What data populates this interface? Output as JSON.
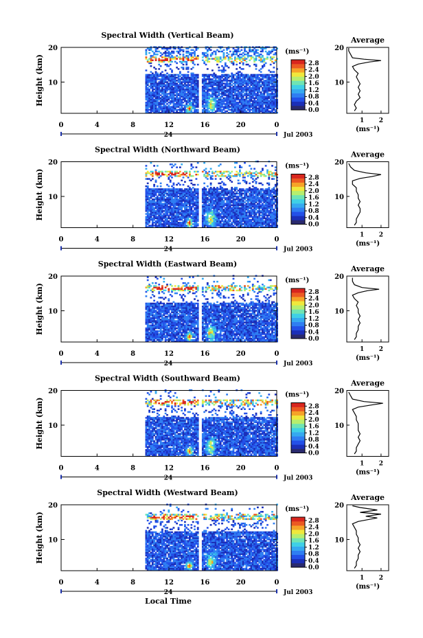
{
  "figure": {
    "bottom_xlabel": "Local Time",
    "colors": {
      "colorbar": [
        "#2a2a6e",
        "#1b2fb8",
        "#2350e8",
        "#2f7ef2",
        "#35a9f0",
        "#3fd0e6",
        "#6fe4b4",
        "#b7ee6e",
        "#f0e83c",
        "#f6a328",
        "#ec5a22",
        "#d8261e"
      ]
    }
  },
  "chart_data": [
    {
      "type": "heatmap",
      "title": "Spectral Width (Vertical Beam)",
      "ylabel": "Height (km)",
      "yticks": [
        "20",
        "10"
      ],
      "ylim": [
        1,
        20
      ],
      "xticks": [
        "0",
        "4",
        "8",
        "12",
        "16",
        "20",
        "0"
      ],
      "xlim": [
        0,
        24
      ],
      "day_label": "24",
      "date_label": "Jul 2003",
      "colorbar": {
        "unit": "(ms⁻¹)",
        "ticks": [
          "0.0",
          "0.4",
          "0.8",
          "1.2",
          "1.6",
          "2.0",
          "2.4",
          "2.8"
        ],
        "range": [
          0,
          3.0
        ]
      },
      "data_gaps_local_time": [
        [
          0,
          9.2
        ],
        [
          15.2,
          15.5
        ]
      ],
      "average": {
        "title": "Average",
        "xlabel": "(ms⁻¹)",
        "xticks": [
          "1",
          "2"
        ],
        "yticks": [
          "20",
          "10"
        ],
        "profile": [
          [
            1.7,
            0.6
          ],
          [
            2.5,
            0.7
          ],
          [
            3.5,
            0.6
          ],
          [
            4.5,
            0.7
          ],
          [
            5.5,
            0.9
          ],
          [
            6.5,
            0.8
          ],
          [
            7.5,
            0.9
          ],
          [
            8.5,
            0.8
          ],
          [
            9.5,
            0.9
          ],
          [
            10.5,
            0.8
          ],
          [
            11.5,
            0.7
          ],
          [
            12.5,
            0.8
          ],
          [
            13.5,
            0.6
          ],
          [
            14.5,
            0.5
          ],
          [
            15.2,
            0.8
          ],
          [
            15.8,
            1.4
          ],
          [
            16.2,
            2.0
          ],
          [
            16.6,
            1.1
          ],
          [
            17.0,
            0.5
          ],
          [
            18.0,
            0.4
          ],
          [
            19.0,
            0.3
          ],
          [
            19.8,
            0.3
          ]
        ]
      }
    },
    {
      "type": "heatmap",
      "title": "Spectral Width (Northward Beam)",
      "ylabel": "Height (km)",
      "yticks": [
        "20",
        "10"
      ],
      "ylim": [
        1,
        20
      ],
      "xticks": [
        "0",
        "4",
        "8",
        "12",
        "16",
        "20",
        "0"
      ],
      "xlim": [
        0,
        24
      ],
      "day_label": "24",
      "date_label": "Jul 2003",
      "colorbar": {
        "unit": "(ms⁻¹)",
        "ticks": [
          "0.0",
          "0.4",
          "0.8",
          "1.2",
          "1.6",
          "2.0",
          "2.4",
          "2.8"
        ],
        "range": [
          0,
          3.0
        ]
      },
      "data_gaps_local_time": [
        [
          0,
          9.2
        ],
        [
          15.2,
          15.5
        ]
      ],
      "average": {
        "title": "Average",
        "xlabel": "(ms⁻¹)",
        "xticks": [
          "1",
          "2"
        ],
        "yticks": [
          "20",
          "10"
        ],
        "profile": [
          [
            1.7,
            0.6
          ],
          [
            2.5,
            0.7
          ],
          [
            3.5,
            0.7
          ],
          [
            4.5,
            0.8
          ],
          [
            5.5,
            0.9
          ],
          [
            6.5,
            0.9
          ],
          [
            7.5,
            0.8
          ],
          [
            8.5,
            0.9
          ],
          [
            9.5,
            0.8
          ],
          [
            10.5,
            0.8
          ],
          [
            11.5,
            0.7
          ],
          [
            12.5,
            0.7
          ],
          [
            13.5,
            0.5
          ],
          [
            14.5,
            0.5
          ],
          [
            15.2,
            0.9
          ],
          [
            15.7,
            1.5
          ],
          [
            16.3,
            2.0
          ],
          [
            16.8,
            1.2
          ],
          [
            17.5,
            0.6
          ],
          [
            18.5,
            0.4
          ],
          [
            19.5,
            0.3
          ]
        ]
      }
    },
    {
      "type": "heatmap",
      "title": "Spectral Width (Eastward Beam)",
      "ylabel": "Height (km)",
      "yticks": [
        "20",
        "10"
      ],
      "ylim": [
        1,
        20
      ],
      "xticks": [
        "0",
        "4",
        "8",
        "12",
        "16",
        "20",
        "0"
      ],
      "xlim": [
        0,
        24
      ],
      "day_label": "24",
      "date_label": "Jul 2003",
      "colorbar": {
        "unit": "(ms⁻¹)",
        "ticks": [
          "0.0",
          "0.4",
          "0.8",
          "1.2",
          "1.6",
          "2.0",
          "2.4",
          "2.8"
        ],
        "range": [
          0,
          3.0
        ]
      },
      "data_gaps_local_time": [
        [
          0,
          9.2
        ],
        [
          15.2,
          15.5
        ]
      ],
      "average": {
        "title": "Average",
        "xlabel": "(ms⁻¹)",
        "xticks": [
          "1",
          "2"
        ],
        "yticks": [
          "20",
          "10"
        ],
        "profile": [
          [
            1.7,
            0.6
          ],
          [
            2.5,
            0.7
          ],
          [
            3.5,
            0.7
          ],
          [
            4.5,
            0.8
          ],
          [
            5.5,
            0.8
          ],
          [
            6.5,
            0.9
          ],
          [
            7.5,
            0.8
          ],
          [
            8.5,
            0.9
          ],
          [
            9.5,
            0.8
          ],
          [
            10.5,
            0.8
          ],
          [
            11.5,
            0.7
          ],
          [
            12.5,
            0.8
          ],
          [
            13.5,
            0.6
          ],
          [
            14.5,
            0.5
          ],
          [
            15.2,
            0.8
          ],
          [
            15.8,
            1.3
          ],
          [
            16.2,
            1.9
          ],
          [
            16.7,
            1.0
          ],
          [
            17.5,
            0.6
          ],
          [
            18.5,
            0.5
          ],
          [
            19.5,
            0.5
          ]
        ]
      }
    },
    {
      "type": "heatmap",
      "title": "Spectral Width (Southward Beam)",
      "ylabel": "Height (km)",
      "yticks": [
        "20",
        "10"
      ],
      "ylim": [
        1,
        20
      ],
      "xticks": [
        "0",
        "4",
        "8",
        "12",
        "16",
        "20",
        "0"
      ],
      "xlim": [
        0,
        24
      ],
      "day_label": "24",
      "date_label": "Jul 2003",
      "colorbar": {
        "unit": "(ms⁻¹)",
        "ticks": [
          "0.0",
          "0.4",
          "0.8",
          "1.2",
          "1.6",
          "2.0",
          "2.4",
          "2.8"
        ],
        "range": [
          0,
          3.0
        ]
      },
      "data_gaps_local_time": [
        [
          0,
          9.2
        ],
        [
          15.2,
          15.5
        ]
      ],
      "average": {
        "title": "Average",
        "xlabel": "(ms⁻¹)",
        "xticks": [
          "1",
          "2"
        ],
        "yticks": [
          "20",
          "10"
        ],
        "profile": [
          [
            1.7,
            0.6
          ],
          [
            2.5,
            0.7
          ],
          [
            3.5,
            0.7
          ],
          [
            4.5,
            0.8
          ],
          [
            5.5,
            0.9
          ],
          [
            6.5,
            0.8
          ],
          [
            7.5,
            0.9
          ],
          [
            8.5,
            0.8
          ],
          [
            9.5,
            0.8
          ],
          [
            10.5,
            0.8
          ],
          [
            11.5,
            0.7
          ],
          [
            12.5,
            0.7
          ],
          [
            13.5,
            0.6
          ],
          [
            14.5,
            0.5
          ],
          [
            15.2,
            0.8
          ],
          [
            15.8,
            1.5
          ],
          [
            16.3,
            2.1
          ],
          [
            16.8,
            1.1
          ],
          [
            17.5,
            0.5
          ],
          [
            18.5,
            0.4
          ],
          [
            19.5,
            0.3
          ]
        ]
      }
    },
    {
      "type": "heatmap",
      "title": "Spectral Width (Westward Beam)",
      "ylabel": "Height (km)",
      "yticks": [
        "20",
        "10"
      ],
      "ylim": [
        1,
        20
      ],
      "xticks": [
        "0",
        "4",
        "8",
        "12",
        "16",
        "20",
        "0"
      ],
      "xlim": [
        0,
        24
      ],
      "day_label": "24",
      "date_label": "Jul 2003",
      "colorbar": {
        "unit": "(ms⁻¹)",
        "ticks": [
          "0.0",
          "0.4",
          "0.8",
          "1.2",
          "1.6",
          "2.0",
          "2.4",
          "2.8"
        ],
        "range": [
          0,
          3.0
        ]
      },
      "data_gaps_local_time": [
        [
          0,
          9.2
        ],
        [
          15.2,
          15.5
        ]
      ],
      "average": {
        "title": "Average",
        "xlabel": "(ms⁻¹)",
        "xticks": [
          "1",
          "2"
        ],
        "yticks": [
          "20",
          "10"
        ],
        "profile": [
          [
            1.7,
            0.6
          ],
          [
            2.5,
            0.7
          ],
          [
            3.5,
            0.7
          ],
          [
            4.5,
            0.8
          ],
          [
            5.5,
            0.8
          ],
          [
            6.5,
            0.9
          ],
          [
            7.5,
            0.8
          ],
          [
            8.5,
            0.9
          ],
          [
            9.5,
            0.8
          ],
          [
            10.5,
            0.8
          ],
          [
            11.5,
            0.7
          ],
          [
            12.5,
            0.7
          ],
          [
            13.5,
            0.6
          ],
          [
            14.5,
            0.5
          ],
          [
            15.2,
            0.8
          ],
          [
            15.8,
            1.4
          ],
          [
            16.2,
            1.8
          ],
          [
            16.7,
            1.2
          ],
          [
            17.3,
            2.0
          ],
          [
            17.8,
            0.9
          ],
          [
            18.5,
            1.8
          ],
          [
            19.2,
            0.9
          ],
          [
            19.7,
            0.5
          ]
        ]
      }
    }
  ]
}
